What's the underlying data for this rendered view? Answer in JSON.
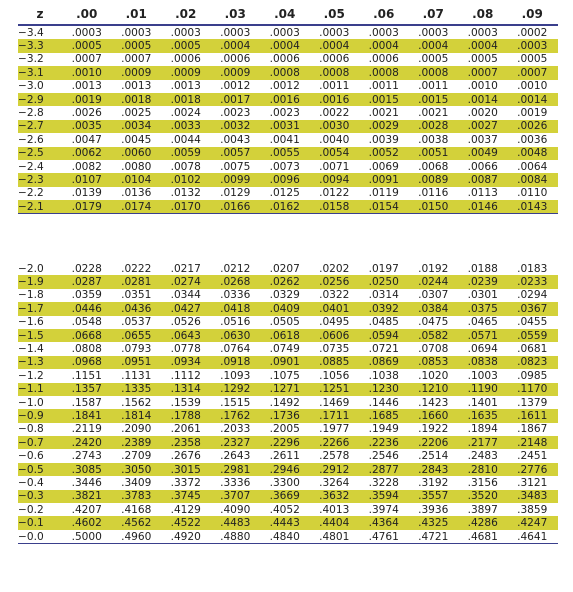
{
  "header": [
    "z",
    ".00",
    ".01",
    ".02",
    ".03",
    ".04",
    ".05",
    ".06",
    ".07",
    ".08",
    ".09"
  ],
  "highlight_color": "#d3d13a",
  "top_rows": [
    {
      "z": "−3.4",
      "hl": false,
      "v": [
        ".0003",
        ".0003",
        ".0003",
        ".0003",
        ".0003",
        ".0003",
        ".0003",
        ".0003",
        ".0003",
        ".0002"
      ]
    },
    {
      "z": "−3.3",
      "hl": true,
      "v": [
        ".0005",
        ".0005",
        ".0005",
        ".0004",
        ".0004",
        ".0004",
        ".0004",
        ".0004",
        ".0004",
        ".0003"
      ]
    },
    {
      "z": "−3.2",
      "hl": false,
      "v": [
        ".0007",
        ".0007",
        ".0006",
        ".0006",
        ".0006",
        ".0006",
        ".0006",
        ".0005",
        ".0005",
        ".0005"
      ]
    },
    {
      "z": "−3.1",
      "hl": true,
      "v": [
        ".0010",
        ".0009",
        ".0009",
        ".0009",
        ".0008",
        ".0008",
        ".0008",
        ".0008",
        ".0007",
        ".0007"
      ]
    },
    {
      "z": "−3.0",
      "hl": false,
      "v": [
        ".0013",
        ".0013",
        ".0013",
        ".0012",
        ".0012",
        ".0011",
        ".0011",
        ".0011",
        ".0010",
        ".0010"
      ]
    },
    {
      "z": "−2.9",
      "hl": true,
      "v": [
        ".0019",
        ".0018",
        ".0018",
        ".0017",
        ".0016",
        ".0016",
        ".0015",
        ".0015",
        ".0014",
        ".0014"
      ]
    },
    {
      "z": "−2.8",
      "hl": false,
      "v": [
        ".0026",
        ".0025",
        ".0024",
        ".0023",
        ".0023",
        ".0022",
        ".0021",
        ".0021",
        ".0020",
        ".0019"
      ]
    },
    {
      "z": "−2.7",
      "hl": true,
      "v": [
        ".0035",
        ".0034",
        ".0033",
        ".0032",
        ".0031",
        ".0030",
        ".0029",
        ".0028",
        ".0027",
        ".0026"
      ]
    },
    {
      "z": "−2.6",
      "hl": false,
      "v": [
        ".0047",
        ".0045",
        ".0044",
        ".0043",
        ".0041",
        ".0040",
        ".0039",
        ".0038",
        ".0037",
        ".0036"
      ]
    },
    {
      "z": "−2.5",
      "hl": true,
      "v": [
        ".0062",
        ".0060",
        ".0059",
        ".0057",
        ".0055",
        ".0054",
        ".0052",
        ".0051",
        ".0049",
        ".0048"
      ]
    },
    {
      "z": "−2.4",
      "hl": false,
      "v": [
        ".0082",
        ".0080",
        ".0078",
        ".0075",
        ".0073",
        ".0071",
        ".0069",
        ".0068",
        ".0066",
        ".0064"
      ]
    },
    {
      "z": "−2.3",
      "hl": true,
      "v": [
        ".0107",
        ".0104",
        ".0102",
        ".0099",
        ".0096",
        ".0094",
        ".0091",
        ".0089",
        ".0087",
        ".0084"
      ]
    },
    {
      "z": "−2.2",
      "hl": false,
      "v": [
        ".0139",
        ".0136",
        ".0132",
        ".0129",
        ".0125",
        ".0122",
        ".0119",
        ".0116",
        ".0113",
        ".0110"
      ]
    },
    {
      "z": "−2.1",
      "hl": true,
      "v": [
        ".0179",
        ".0174",
        ".0170",
        ".0166",
        ".0162",
        ".0158",
        ".0154",
        ".0150",
        ".0146",
        ".0143"
      ]
    }
  ],
  "bottom_rows": [
    {
      "z": "−2.0",
      "hl": false,
      "v": [
        ".0228",
        ".0222",
        ".0217",
        ".0212",
        ".0207",
        ".0202",
        ".0197",
        ".0192",
        ".0188",
        ".0183"
      ]
    },
    {
      "z": "−1.9",
      "hl": true,
      "v": [
        ".0287",
        ".0281",
        ".0274",
        ".0268",
        ".0262",
        ".0256",
        ".0250",
        ".0244",
        ".0239",
        ".0233"
      ]
    },
    {
      "z": "−1.8",
      "hl": false,
      "v": [
        ".0359",
        ".0351",
        ".0344",
        ".0336",
        ".0329",
        ".0322",
        ".0314",
        ".0307",
        ".0301",
        ".0294"
      ]
    },
    {
      "z": "−1.7",
      "hl": true,
      "v": [
        ".0446",
        ".0436",
        ".0427",
        ".0418",
        ".0409",
        ".0401",
        ".0392",
        ".0384",
        ".0375",
        ".0367"
      ]
    },
    {
      "z": "−1.6",
      "hl": false,
      "v": [
        ".0548",
        ".0537",
        ".0526",
        ".0516",
        ".0505",
        ".0495",
        ".0485",
        ".0475",
        ".0465",
        ".0455"
      ]
    },
    {
      "z": "−1.5",
      "hl": true,
      "v": [
        ".0668",
        ".0655",
        ".0643",
        ".0630",
        ".0618",
        ".0606",
        ".0594",
        ".0582",
        ".0571",
        ".0559"
      ]
    },
    {
      "z": "−1.4",
      "hl": false,
      "v": [
        ".0808",
        ".0793",
        ".0778",
        ".0764",
        ".0749",
        ".0735",
        ".0721",
        ".0708",
        ".0694",
        ".0681"
      ]
    },
    {
      "z": "−1.3",
      "hl": true,
      "v": [
        ".0968",
        ".0951",
        ".0934",
        ".0918",
        ".0901",
        ".0885",
        ".0869",
        ".0853",
        ".0838",
        ".0823"
      ]
    },
    {
      "z": "−1.2",
      "hl": false,
      "v": [
        ".1151",
        ".1131",
        ".1112",
        ".1093",
        ".1075",
        ".1056",
        ".1038",
        ".1020",
        ".1003",
        ".0985"
      ]
    },
    {
      "z": "−1.1",
      "hl": true,
      "v": [
        ".1357",
        ".1335",
        ".1314",
        ".1292",
        ".1271",
        ".1251",
        ".1230",
        ".1210",
        ".1190",
        ".1170"
      ]
    },
    {
      "z": "−1.0",
      "hl": false,
      "v": [
        ".1587",
        ".1562",
        ".1539",
        ".1515",
        ".1492",
        ".1469",
        ".1446",
        ".1423",
        ".1401",
        ".1379"
      ]
    },
    {
      "z": "−0.9",
      "hl": true,
      "v": [
        ".1841",
        ".1814",
        ".1788",
        ".1762",
        ".1736",
        ".1711",
        ".1685",
        ".1660",
        ".1635",
        ".1611"
      ]
    },
    {
      "z": "−0.8",
      "hl": false,
      "v": [
        ".2119",
        ".2090",
        ".2061",
        ".2033",
        ".2005",
        ".1977",
        ".1949",
        ".1922",
        ".1894",
        ".1867"
      ]
    },
    {
      "z": "−0.7",
      "hl": true,
      "v": [
        ".2420",
        ".2389",
        ".2358",
        ".2327",
        ".2296",
        ".2266",
        ".2236",
        ".2206",
        ".2177",
        ".2148"
      ]
    },
    {
      "z": "−0.6",
      "hl": false,
      "v": [
        ".2743",
        ".2709",
        ".2676",
        ".2643",
        ".2611",
        ".2578",
        ".2546",
        ".2514",
        ".2483",
        ".2451"
      ]
    },
    {
      "z": "−0.5",
      "hl": true,
      "v": [
        ".3085",
        ".3050",
        ".3015",
        ".2981",
        ".2946",
        ".2912",
        ".2877",
        ".2843",
        ".2810",
        ".2776"
      ]
    },
    {
      "z": "−0.4",
      "hl": false,
      "v": [
        ".3446",
        ".3409",
        ".3372",
        ".3336",
        ".3300",
        ".3264",
        ".3228",
        ".3192",
        ".3156",
        ".3121"
      ]
    },
    {
      "z": "−0.3",
      "hl": true,
      "v": [
        ".3821",
        ".3783",
        ".3745",
        ".3707",
        ".3669",
        ".3632",
        ".3594",
        ".3557",
        ".3520",
        ".3483"
      ]
    },
    {
      "z": "−0.2",
      "hl": false,
      "v": [
        ".4207",
        ".4168",
        ".4129",
        ".4090",
        ".4052",
        ".4013",
        ".3974",
        ".3936",
        ".3897",
        ".3859"
      ]
    },
    {
      "z": "−0.1",
      "hl": true,
      "v": [
        ".4602",
        ".4562",
        ".4522",
        ".4483",
        ".4443",
        ".4404",
        ".4364",
        ".4325",
        ".4286",
        ".4247"
      ]
    },
    {
      "z": "−0.0",
      "hl": false,
      "v": [
        ".5000",
        ".4960",
        ".4920",
        ".4880",
        ".4840",
        ".4801",
        ".4761",
        ".4721",
        ".4681",
        ".4641"
      ]
    }
  ]
}
